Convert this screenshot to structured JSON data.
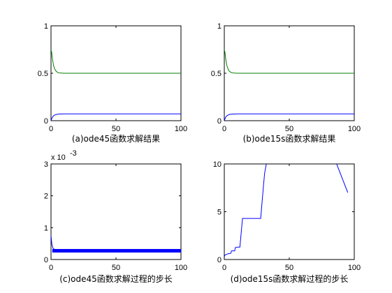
{
  "chart_data": [
    {
      "type": "line",
      "caption": "(a)ode45函数求解结果",
      "xlim": [
        0,
        100
      ],
      "ylim": [
        0,
        1
      ],
      "xticks": [
        "0",
        "50",
        "100"
      ],
      "yticks": [
        "0",
        "0.5",
        "1"
      ],
      "grid": false,
      "series": [
        {
          "color": "#008000",
          "x": [
            0,
            0.5,
            1,
            2,
            3,
            4,
            5,
            6,
            8,
            10,
            15,
            20,
            30,
            50,
            100
          ],
          "values": [
            0.75,
            0.72,
            0.66,
            0.58,
            0.54,
            0.52,
            0.51,
            0.505,
            0.502,
            0.5,
            0.5,
            0.5,
            0.5,
            0.5,
            0.5
          ]
        },
        {
          "color": "#0000ff",
          "x": [
            0,
            0.5,
            1,
            2,
            3,
            4,
            5,
            6,
            8,
            10,
            15,
            20,
            30,
            50,
            100
          ],
          "values": [
            0.0,
            0.02,
            0.035,
            0.052,
            0.06,
            0.065,
            0.068,
            0.07,
            0.071,
            0.072,
            0.072,
            0.072,
            0.072,
            0.072,
            0.072
          ]
        }
      ]
    },
    {
      "type": "line",
      "caption": "(b)ode15s函数求解结果",
      "xlim": [
        0,
        100
      ],
      "ylim": [
        0,
        1
      ],
      "xticks": [
        "0",
        "50",
        "100"
      ],
      "yticks": [
        "0",
        "0.5",
        "1"
      ],
      "grid": false,
      "series": [
        {
          "color": "#008000",
          "x": [
            0,
            0.5,
            1,
            2,
            3,
            4,
            5,
            6,
            8,
            10,
            15,
            20,
            30,
            50,
            100
          ],
          "values": [
            0.75,
            0.72,
            0.66,
            0.58,
            0.54,
            0.52,
            0.51,
            0.505,
            0.502,
            0.5,
            0.5,
            0.5,
            0.5,
            0.5,
            0.5
          ]
        },
        {
          "color": "#0000ff",
          "x": [
            0,
            0.5,
            1,
            2,
            3,
            4,
            5,
            6,
            8,
            10,
            15,
            20,
            30,
            50,
            100
          ],
          "values": [
            0.0,
            0.02,
            0.035,
            0.052,
            0.06,
            0.065,
            0.068,
            0.07,
            0.071,
            0.072,
            0.072,
            0.072,
            0.072,
            0.072,
            0.072
          ]
        }
      ]
    },
    {
      "type": "line",
      "caption": "(c)ode45函数求解过程的步长",
      "xlim": [
        0,
        100
      ],
      "ylim": [
        0,
        3
      ],
      "y_exponent": "x 10",
      "y_exponent_power": "-3",
      "xticks": [
        "0",
        "50",
        "100"
      ],
      "yticks": [
        "0",
        "1",
        "2",
        "3"
      ],
      "grid": false,
      "series": [
        {
          "color": "#0000ff",
          "band": {
            "x_start": 1,
            "x_end": 100,
            "low": 0.22,
            "high": 0.33
          },
          "x": [
            0,
            0.3,
            0.6,
            1,
            1.5,
            2,
            3,
            4,
            5
          ],
          "values": [
            0.75,
            0.62,
            0.5,
            0.42,
            0.36,
            0.33,
            0.32,
            0.31,
            0.3
          ]
        }
      ]
    },
    {
      "type": "line",
      "caption": "(d)ode15s函数求解过程的步长",
      "xlim": [
        0,
        100
      ],
      "ylim": [
        0,
        10
      ],
      "xticks": [
        "0",
        "50",
        "100"
      ],
      "yticks": [
        "0",
        "5",
        "10"
      ],
      "grid": false,
      "series": [
        {
          "color": "#0000ff",
          "x": [
            0,
            0.5,
            1,
            2,
            3,
            5,
            5.5,
            8,
            8.5,
            10,
            12,
            14,
            16,
            18,
            22,
            26,
            28,
            30,
            31,
            33,
            85,
            95
          ],
          "values": [
            0.3,
            0.45,
            0.5,
            0.55,
            0.6,
            0.65,
            0.9,
            0.9,
            1.25,
            1.3,
            1.3,
            4.3,
            4.3,
            4.3,
            4.3,
            4.3,
            4.3,
            7.5,
            9.0,
            10.5,
            10.5,
            7.0
          ]
        }
      ]
    }
  ]
}
